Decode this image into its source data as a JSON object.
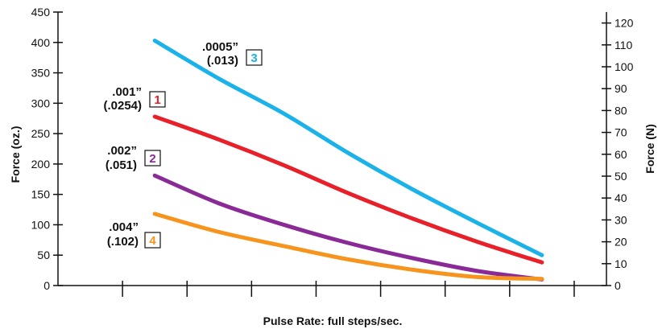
{
  "chart_data": {
    "type": "line",
    "xlabel": "Pulse Rate: full steps/sec.",
    "ylabel": "Force (oz.)",
    "y2label": "Force (N)",
    "xlim": [
      25,
      450
    ],
    "ylim": [
      0,
      450
    ],
    "y2lim": [
      0,
      125
    ],
    "xticks": [
      100,
      200,
      300,
      400
    ],
    "yticks": [
      0,
      50,
      100,
      150,
      200,
      250,
      300,
      350,
      400,
      450
    ],
    "y2ticks": [
      0,
      10,
      20,
      30,
      40,
      50,
      60,
      70,
      80,
      90,
      100,
      110,
      120
    ],
    "grid": false,
    "series": [
      {
        "badge": "3",
        "label_line1": ".0005”",
        "label_line2": "(.013)",
        "color": "#1ab2e8",
        "x": [
          100,
          150,
          200,
          250,
          300,
          350,
          400
        ],
        "values": [
          403,
          340,
          283,
          218,
          158,
          103,
          50
        ]
      },
      {
        "badge": "1",
        "label_line1": ".001”",
        "label_line2": "(.0254)",
        "color": "#e8202a",
        "x": [
          100,
          150,
          200,
          250,
          300,
          350,
          400
        ],
        "values": [
          278,
          240,
          198,
          152,
          110,
          72,
          38
        ]
      },
      {
        "badge": "2",
        "label_line1": ".002”",
        "label_line2": "(.051)",
        "color": "#8a2a96",
        "x": [
          100,
          150,
          200,
          250,
          300,
          350,
          400
        ],
        "values": [
          181,
          135,
          100,
          70,
          45,
          24,
          10
        ]
      },
      {
        "badge": "4",
        "label_line1": ".004”",
        "label_line2": "(.102)",
        "color": "#f7941d",
        "x": [
          100,
          150,
          200,
          250,
          300,
          350,
          400
        ],
        "values": [
          118,
          88,
          65,
          43,
          26,
          14,
          11
        ]
      }
    ]
  }
}
